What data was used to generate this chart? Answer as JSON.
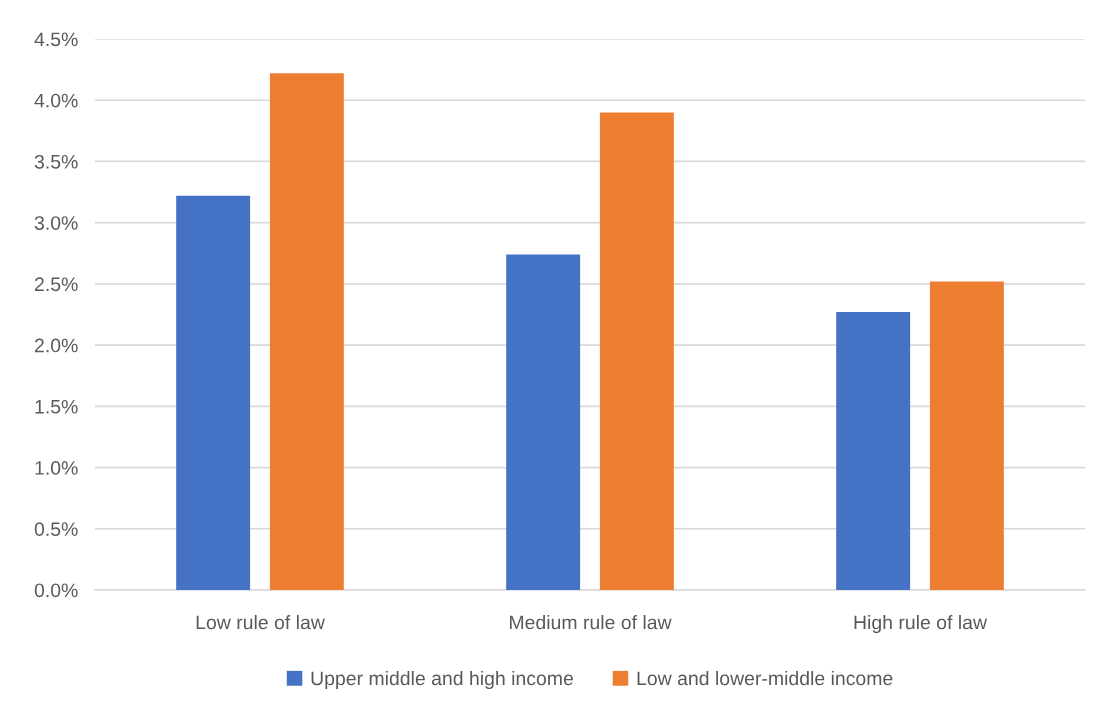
{
  "chart_data": {
    "type": "bar",
    "categories": [
      "Low rule of law",
      "Medium rule of law",
      "High rule of law"
    ],
    "series": [
      {
        "name": "Upper middle and high income",
        "color": "#4472c4",
        "values": [
          3.22,
          2.74,
          2.27
        ]
      },
      {
        "name": "Low and lower-middle income",
        "color": "#ed7d31",
        "values": [
          4.22,
          3.9,
          2.52
        ]
      }
    ],
    "ylim": [
      0,
      4.5
    ],
    "yticks": [
      {
        "value": 0,
        "label": "0.0%"
      },
      {
        "value": 0.5,
        "label": "0.5%"
      },
      {
        "value": 1.0,
        "label": "1.0%"
      },
      {
        "value": 1.5,
        "label": "1.5%"
      },
      {
        "value": 2.0,
        "label": "2.0%"
      },
      {
        "value": 2.5,
        "label": "2.5%"
      },
      {
        "value": 3.0,
        "label": "3.0%"
      },
      {
        "value": 3.5,
        "label": "3.5%"
      },
      {
        "value": 4.0,
        "label": "4.0%"
      },
      {
        "value": 4.5,
        "label": "4.5%"
      }
    ],
    "grid": "y",
    "legend": "bottom"
  }
}
